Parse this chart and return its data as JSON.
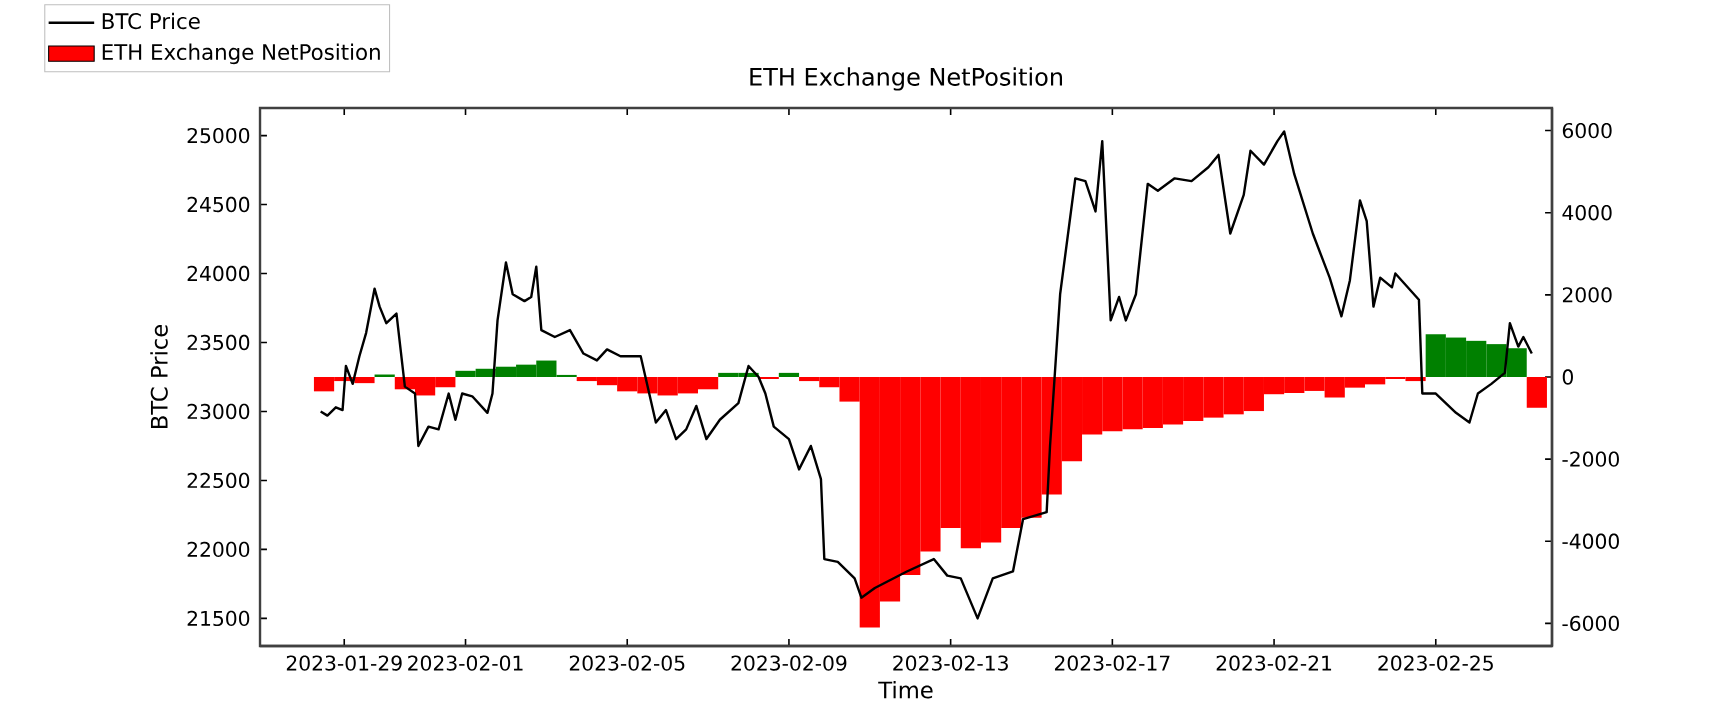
{
  "chart_data": {
    "type": "line",
    "title": "ETH Exchange NetPosition",
    "xlabel": "Time",
    "ylabel": "BTC Price",
    "xlim": [
      "2023-01-26T22:00",
      "2023-02-27T21:00"
    ],
    "xticks": [
      "2023-01-29",
      "2023-02-01",
      "2023-02-05",
      "2023-02-09",
      "2023-02-13",
      "2023-02-17",
      "2023-02-21",
      "2023-02-25"
    ],
    "ylim": [
      21300,
      25200
    ],
    "yticks": [
      21500,
      22000,
      22500,
      23000,
      23500,
      24000,
      24500,
      25000
    ],
    "y2lim": [
      -6550,
      6550
    ],
    "y2ticks": [
      -6000,
      -4000,
      -2000,
      0,
      2000,
      4000,
      6000
    ],
    "legend": "top left",
    "series": [
      {
        "name": "BTC Price",
        "color": "#000000",
        "x": [
          "2023-01-28T10:00",
          "2023-01-28T14:00",
          "2023-01-28T19:00",
          "2023-01-28T23:00",
          "2023-01-29T01:00",
          "2023-01-29T05:00",
          "2023-01-29T09:00",
          "2023-01-29T13:00",
          "2023-01-29T18:00",
          "2023-01-29T21:00",
          "2023-01-30T01:00",
          "2023-01-30T07:00",
          "2023-01-30T12:00",
          "2023-01-30T18:00",
          "2023-01-30T20:00",
          "2023-01-31T02:00",
          "2023-01-31T08:00",
          "2023-01-31T14:00",
          "2023-01-31T18:00",
          "2023-01-31T22:00",
          "2023-02-01T04:00",
          "2023-02-01T13:00",
          "2023-02-01T16:00",
          "2023-02-01T19:00",
          "2023-02-02T00:00",
          "2023-02-02T04:00",
          "2023-02-02T11:00",
          "2023-02-02T15:00",
          "2023-02-02T18:00",
          "2023-02-02T21:00",
          "2023-02-03T05:00",
          "2023-02-03T14:00",
          "2023-02-03T22:00",
          "2023-02-04T06:00",
          "2023-02-04T12:00",
          "2023-02-04T20:00",
          "2023-02-05T08:00",
          "2023-02-05T17:00",
          "2023-02-05T23:00",
          "2023-02-06T05:00",
          "2023-02-06T11:00",
          "2023-02-06T17:00",
          "2023-02-06T23:00",
          "2023-02-07T07:00",
          "2023-02-07T18:00",
          "2023-02-08T00:00",
          "2023-02-08T06:00",
          "2023-02-08T10:00",
          "2023-02-08T15:00",
          "2023-02-09T00:00",
          "2023-02-09T06:00",
          "2023-02-09T13:00",
          "2023-02-09T19:00",
          "2023-02-09T21:00",
          "2023-02-10T05:00",
          "2023-02-10T15:00",
          "2023-02-10T19:00",
          "2023-02-11T03:00",
          "2023-02-11T22:00",
          "2023-02-12T14:00",
          "2023-02-12T22:00",
          "2023-02-13T06:00",
          "2023-02-13T16:00",
          "2023-02-14T01:00",
          "2023-02-14T13:00",
          "2023-02-14T19:00",
          "2023-02-15T09:00",
          "2023-02-15T11:00",
          "2023-02-15T17:00",
          "2023-02-16T02:00",
          "2023-02-16T08:00",
          "2023-02-16T14:00",
          "2023-02-16T18:00",
          "2023-02-16T23:00",
          "2023-02-17T04:00",
          "2023-02-17T08:00",
          "2023-02-17T14:00",
          "2023-02-17T21:00",
          "2023-02-18T03:00",
          "2023-02-18T13:00",
          "2023-02-18T23:00",
          "2023-02-19T09:00",
          "2023-02-19T15:00",
          "2023-02-19T22:00",
          "2023-02-20T06:00",
          "2023-02-20T10:00",
          "2023-02-20T18:00",
          "2023-02-21T02:00",
          "2023-02-21T06:00",
          "2023-02-21T12:00",
          "2023-02-21T23:00",
          "2023-02-22T09:00",
          "2023-02-22T16:00",
          "2023-02-22T21:00",
          "2023-02-23T03:00",
          "2023-02-23T07:00",
          "2023-02-23T11:00",
          "2023-02-23T15:00",
          "2023-02-23T22:00",
          "2023-02-24T00:00",
          "2023-02-24T14:00",
          "2023-02-24T16:00",
          "2023-02-25T00:00",
          "2023-02-25T12:00",
          "2023-02-25T20:00",
          "2023-02-26T01:00",
          "2023-02-26T09:00",
          "2023-02-26T17:00",
          "2023-02-26T20:00",
          "2023-02-27T01:00",
          "2023-02-27T04:00",
          "2023-02-27T09:00"
        ],
        "values": [
          23000,
          22970,
          23030,
          23010,
          23330,
          23200,
          23400,
          23570,
          23890,
          23760,
          23640,
          23710,
          23180,
          23130,
          22750,
          22890,
          22870,
          23130,
          22940,
          23130,
          23110,
          22990,
          23130,
          23660,
          24080,
          23850,
          23800,
          23830,
          24050,
          23590,
          23540,
          23590,
          23420,
          23370,
          23450,
          23400,
          23400,
          22920,
          23010,
          22800,
          22870,
          23040,
          22800,
          22940,
          23060,
          23330,
          23250,
          23130,
          22890,
          22800,
          22580,
          22750,
          22510,
          21930,
          21910,
          21790,
          21650,
          21720,
          21840,
          21930,
          21810,
          21790,
          21500,
          21790,
          21840,
          22220,
          22270,
          22750,
          23850,
          24690,
          24670,
          24450,
          24960,
          23660,
          23830,
          23660,
          23850,
          24650,
          24600,
          24690,
          24670,
          24770,
          24860,
          24290,
          24570,
          24890,
          24790,
          24960,
          25030,
          24720,
          24290,
          23970,
          23690,
          23950,
          24530,
          24380,
          23760,
          23970,
          23900,
          24000,
          23810,
          23130,
          23130,
          22990,
          22920,
          23130,
          23200,
          23280,
          23640,
          23470,
          23540,
          23420
        ]
      },
      {
        "name": "ETH Exchange NetPosition",
        "type": "bar",
        "axis": "y2",
        "color": "#ff0000",
        "x": [
          "2023-01-28T12:00",
          "2023-01-29T00:00",
          "2023-01-29T12:00",
          "2023-01-30T00:00",
          "2023-01-30T12:00",
          "2023-01-31T00:00",
          "2023-01-31T12:00",
          "2023-02-01T00:00",
          "2023-02-01T12:00",
          "2023-02-02T00:00",
          "2023-02-02T12:00",
          "2023-02-03T00:00",
          "2023-02-03T12:00",
          "2023-02-04T00:00",
          "2023-02-04T12:00",
          "2023-02-05T00:00",
          "2023-02-05T12:00",
          "2023-02-06T00:00",
          "2023-02-06T12:00",
          "2023-02-07T00:00",
          "2023-02-07T12:00",
          "2023-02-08T00:00",
          "2023-02-08T12:00",
          "2023-02-09T00:00",
          "2023-02-09T12:00",
          "2023-02-10T00:00",
          "2023-02-10T12:00",
          "2023-02-11T00:00",
          "2023-02-11T12:00",
          "2023-02-12T00:00",
          "2023-02-12T12:00",
          "2023-02-13T00:00",
          "2023-02-13T12:00",
          "2023-02-14T00:00",
          "2023-02-14T12:00",
          "2023-02-15T00:00",
          "2023-02-15T12:00",
          "2023-02-16T00:00",
          "2023-02-16T12:00",
          "2023-02-17T00:00",
          "2023-02-17T12:00",
          "2023-02-18T00:00",
          "2023-02-18T12:00",
          "2023-02-19T00:00",
          "2023-02-19T12:00",
          "2023-02-20T00:00",
          "2023-02-20T12:00",
          "2023-02-21T00:00",
          "2023-02-21T12:00",
          "2023-02-22T00:00",
          "2023-02-22T12:00",
          "2023-02-23T00:00",
          "2023-02-23T12:00",
          "2023-02-24T00:00",
          "2023-02-24T12:00",
          "2023-02-25T00:00",
          "2023-02-25T12:00",
          "2023-02-26T00:00",
          "2023-02-26T12:00",
          "2023-02-27T00:00",
          "2023-02-27T12:00"
        ],
        "values": [
          -350,
          -100,
          -150,
          60,
          -300,
          -450,
          -250,
          150,
          200,
          250,
          300,
          400,
          50,
          -100,
          -200,
          -350,
          -400,
          -450,
          -400,
          -300,
          100,
          100,
          -50,
          100,
          -100,
          -250,
          -600,
          -6100,
          -5470,
          -4820,
          -4250,
          -3680,
          -4170,
          -4030,
          -3680,
          -3430,
          -2860,
          -2050,
          -1400,
          -1320,
          -1270,
          -1240,
          -1160,
          -1070,
          -990,
          -910,
          -830,
          -420,
          -390,
          -340,
          -500,
          -260,
          -180,
          -50,
          -100,
          1040,
          960,
          880,
          800,
          700,
          -750
        ],
        "colors": [
          "#ff0000",
          "#ff0000",
          "#ff0000",
          "#008000",
          "#ff0000",
          "#ff0000",
          "#ff0000",
          "#008000",
          "#008000",
          "#008000",
          "#008000",
          "#008000",
          "#008000",
          "#ff0000",
          "#ff0000",
          "#ff0000",
          "#ff0000",
          "#ff0000",
          "#ff0000",
          "#ff0000",
          "#008000",
          "#008000",
          "#ff0000",
          "#008000",
          "#ff0000",
          "#ff0000",
          "#ff0000",
          "#ff0000",
          "#ff0000",
          "#ff0000",
          "#ff0000",
          "#ff0000",
          "#ff0000",
          "#ff0000",
          "#ff0000",
          "#ff0000",
          "#ff0000",
          "#ff0000",
          "#ff0000",
          "#ff0000",
          "#ff0000",
          "#ff0000",
          "#ff0000",
          "#ff0000",
          "#ff0000",
          "#ff0000",
          "#ff0000",
          "#ff0000",
          "#ff0000",
          "#ff0000",
          "#ff0000",
          "#ff0000",
          "#ff0000",
          "#ff0000",
          "#ff0000",
          "#008000",
          "#008000",
          "#008000",
          "#008000",
          "#008000",
          "#ff0000"
        ]
      }
    ]
  }
}
